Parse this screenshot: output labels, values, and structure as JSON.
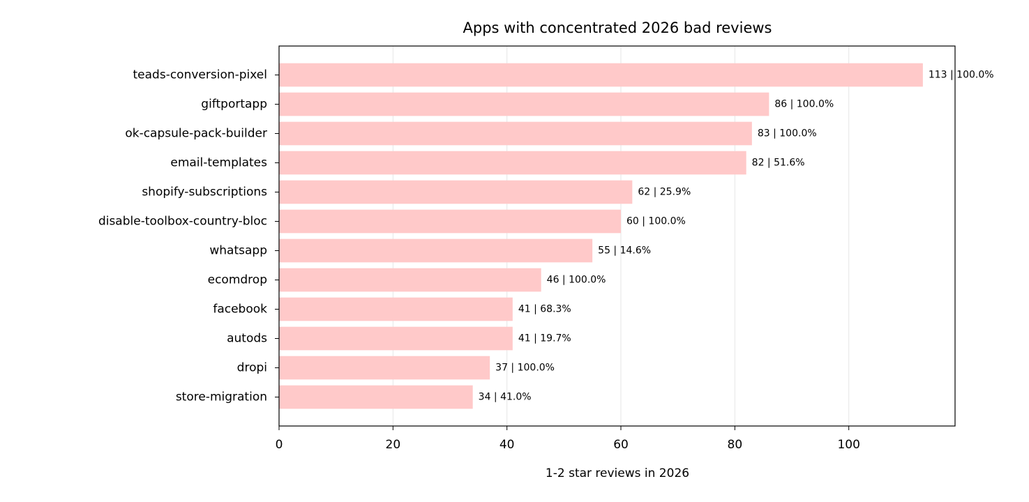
{
  "chart_data": {
    "type": "bar",
    "orientation": "horizontal",
    "title": "Apps with concentrated 2026 bad reviews",
    "xlabel": "1-2 star reviews in 2026",
    "categories": [
      "teads-conversion-pixel",
      "giftportapp",
      "ok-capsule-pack-builder",
      "email-templates",
      "shopify-subscriptions",
      "disable-toolbox-country-bloc",
      "whatsapp",
      "ecomdrop",
      "facebook",
      "autods",
      "dropi",
      "store-migration"
    ],
    "values": [
      113,
      86,
      83,
      82,
      62,
      60,
      55,
      46,
      41,
      41,
      37,
      34
    ],
    "value_labels": [
      "113 | 100.0%",
      "86 | 100.0%",
      "83 | 100.0%",
      "82 | 51.6%",
      "62 | 25.9%",
      "60 | 100.0%",
      "55 | 14.6%",
      "46 | 100.0%",
      "41 | 68.3%",
      "41 | 19.7%",
      "37 | 100.0%",
      "34 | 41.0%"
    ],
    "color": "#ffc9c9",
    "xlim": [
      0,
      118.65
    ],
    "xticks": [
      0,
      20,
      40,
      60,
      80,
      100
    ],
    "grid": true
  }
}
